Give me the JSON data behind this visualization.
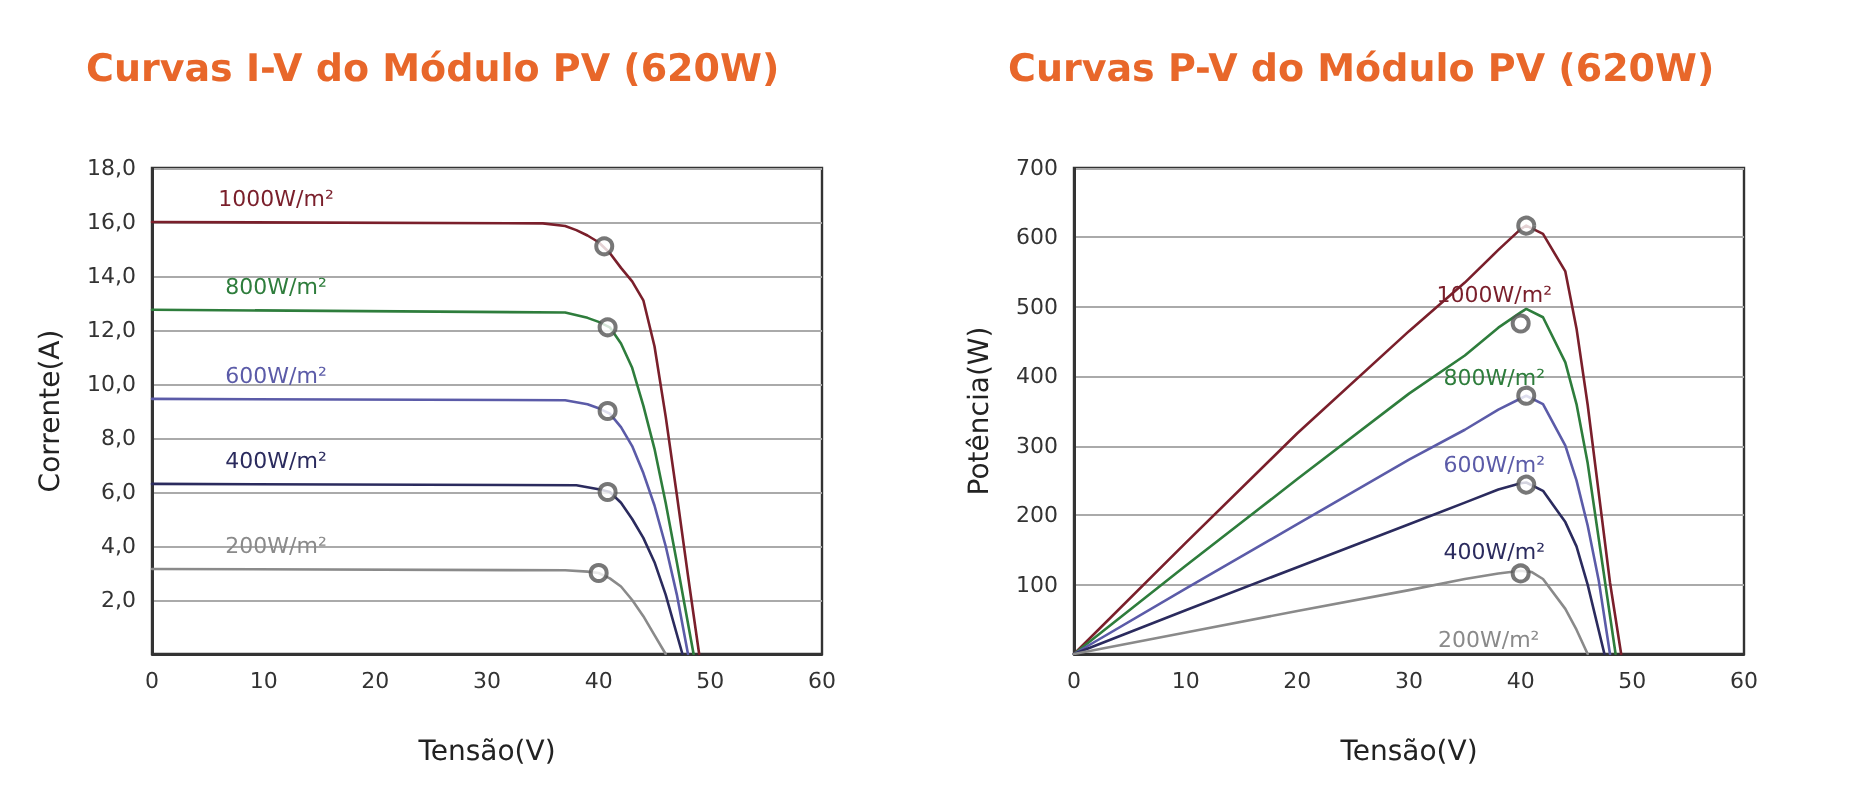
{
  "chart_data": [
    {
      "type": "line",
      "title": "Curvas I-V do Módulo PV (620W)",
      "xlabel": "Tensão(V)",
      "ylabel": "Corrente(A)",
      "xlim": [
        0,
        60
      ],
      "xticks": [
        0,
        10,
        20,
        30,
        40,
        50,
        60
      ],
      "ylim": [
        0,
        18
      ],
      "yticks": [
        {
          "value": 2,
          "label": "2,0"
        },
        {
          "value": 4,
          "label": "4,0"
        },
        {
          "value": 6,
          "label": "6,0"
        },
        {
          "value": 8,
          "label": "8,0"
        },
        {
          "value": 10,
          "label": "10,0"
        },
        {
          "value": 12,
          "label": "12,0"
        },
        {
          "value": 14,
          "label": "14,0"
        },
        {
          "value": 16,
          "label": "16,0"
        },
        {
          "value": 18,
          "label": "18,0"
        }
      ],
      "grid": "y",
      "marker": "none",
      "line_style": "solid",
      "series": [
        {
          "name": "1000W/m²",
          "color": "#7a1f2b",
          "x": [
            0,
            35,
            37,
            38,
            39,
            40,
            41,
            42,
            43,
            44,
            45,
            46,
            47,
            48,
            49
          ],
          "values": [
            16.0,
            15.95,
            15.85,
            15.7,
            15.5,
            15.25,
            14.85,
            14.3,
            13.8,
            13.1,
            11.4,
            8.8,
            5.9,
            2.9,
            0
          ]
        },
        {
          "name": "800W/m²",
          "color": "#2e7d3c",
          "x": [
            0,
            37,
            39,
            40,
            41,
            42,
            43,
            44,
            45,
            46,
            47,
            48.5
          ],
          "values": [
            12.75,
            12.65,
            12.45,
            12.3,
            12.1,
            11.5,
            10.6,
            9.2,
            7.6,
            5.6,
            3.4,
            0
          ]
        },
        {
          "name": "600W/m²",
          "color": "#5b5ba8",
          "x": [
            0,
            37,
            39,
            40,
            41,
            42,
            43,
            44,
            45,
            46,
            47,
            48
          ],
          "values": [
            9.45,
            9.4,
            9.25,
            9.1,
            8.9,
            8.4,
            7.7,
            6.7,
            5.5,
            4.0,
            2.2,
            0
          ]
        },
        {
          "name": "400W/m²",
          "color": "#2b2b5e",
          "x": [
            0,
            38,
            40,
            41,
            42,
            43,
            44,
            45,
            46,
            47.5
          ],
          "values": [
            6.3,
            6.25,
            6.1,
            6.0,
            5.6,
            5.0,
            4.3,
            3.4,
            2.2,
            0
          ]
        },
        {
          "name": "200W/m²",
          "color": "#8a8a8a",
          "x": [
            0,
            37,
            39,
            40,
            41,
            42,
            43,
            44,
            45,
            46
          ],
          "values": [
            3.15,
            3.1,
            3.05,
            3.0,
            2.8,
            2.5,
            2.0,
            1.4,
            0.7,
            0
          ]
        },
        {
          "type": "scatter",
          "marker": "circle",
          "color": "#555555",
          "x": [
            40.5,
            40.8,
            40.8,
            40.8,
            40
          ],
          "values": [
            15.1,
            12.1,
            9.0,
            6.0,
            3.0
          ]
        }
      ]
    },
    {
      "type": "line",
      "title": "Curvas P-V do Módulo PV (620W)",
      "xlabel": "Tensão(V)",
      "ylabel": "Potência(W)",
      "xlim": [
        0,
        60
      ],
      "xticks": [
        0,
        10,
        20,
        30,
        40,
        50,
        60
      ],
      "ylim": [
        0,
        700
      ],
      "yticks": [
        100,
        200,
        300,
        400,
        500,
        600,
        700
      ],
      "grid": "y",
      "marker": "none",
      "line_style": "solid",
      "series": [
        {
          "name": "1000W/m²",
          "color": "#7a1f2b",
          "x": [
            0,
            10,
            20,
            30,
            35,
            38,
            40,
            40.5,
            42,
            44,
            45,
            46,
            47,
            48,
            49
          ],
          "values": [
            0,
            160,
            318,
            465,
            535,
            582,
            612,
            617,
            605,
            551,
            469,
            359,
            231,
            103,
            0
          ]
        },
        {
          "name": "800W/m²",
          "color": "#2e7d3c",
          "x": [
            0,
            10,
            20,
            30,
            35,
            38,
            40,
            40.5,
            42,
            44,
            45,
            46,
            47,
            48.5
          ],
          "values": [
            0,
            127,
            252,
            375,
            430,
            470,
            492,
            497,
            485,
            420,
            360,
            275,
            165,
            0
          ]
        },
        {
          "name": "600W/m²",
          "color": "#5b5ba8",
          "x": [
            0,
            10,
            20,
            30,
            35,
            38,
            40,
            40.5,
            42,
            44,
            45,
            46,
            47,
            48
          ],
          "values": [
            0,
            94,
            187,
            280,
            323,
            352,
            368,
            372,
            360,
            300,
            250,
            185,
            105,
            0
          ]
        },
        {
          "name": "400W/m²",
          "color": "#2b2b5e",
          "x": [
            0,
            10,
            20,
            30,
            35,
            38,
            40,
            40.5,
            42,
            44,
            45,
            46,
            47.5
          ],
          "values": [
            0,
            63,
            125,
            187,
            218,
            237,
            246,
            247,
            235,
            190,
            155,
            100,
            0
          ]
        },
        {
          "name": "200W/m²",
          "color": "#8a8a8a",
          "x": [
            0,
            10,
            20,
            30,
            35,
            38,
            40,
            41,
            42,
            44,
            45,
            46
          ],
          "values": [
            0,
            31,
            62,
            92,
            108,
            116,
            120,
            118,
            108,
            65,
            35,
            0
          ]
        },
        {
          "type": "scatter",
          "marker": "circle",
          "color": "#555555",
          "x": [
            40.5,
            40,
            40.5,
            40.5,
            40
          ],
          "values": [
            617,
            476,
            372,
            244,
            116
          ]
        }
      ]
    }
  ]
}
